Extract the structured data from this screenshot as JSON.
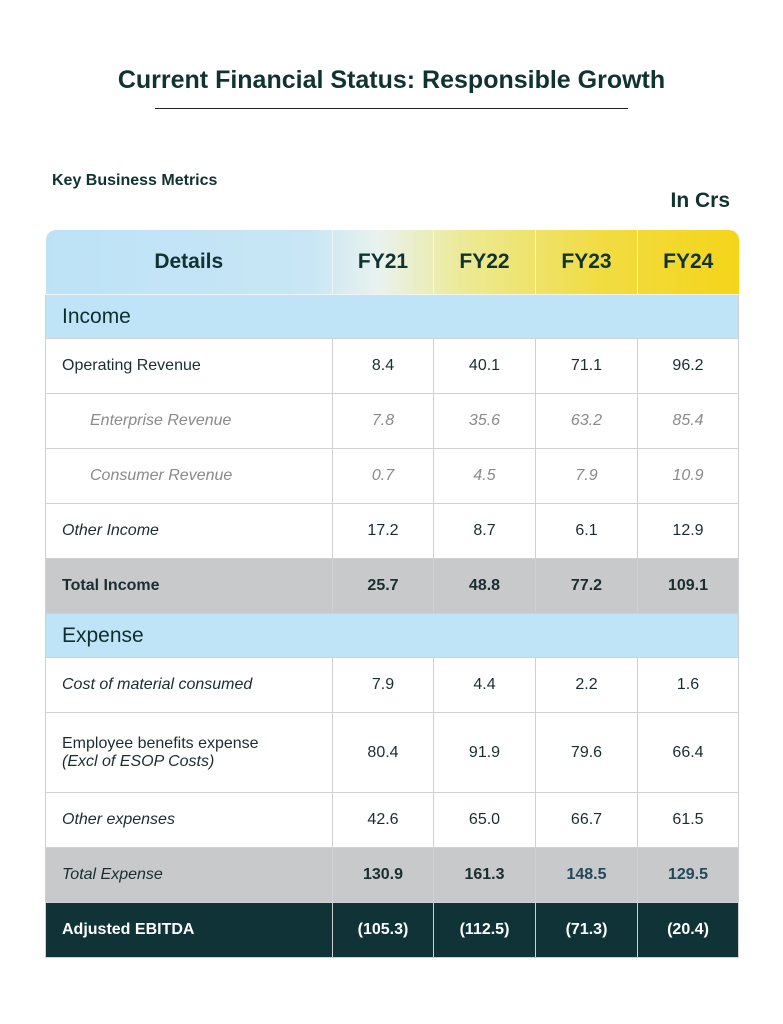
{
  "header": {
    "title": "Current Financial Status: Responsible Growth",
    "subtitle": "Key Business Metrics",
    "unit": "In Crs"
  },
  "table": {
    "columns": [
      "Details",
      "FY21",
      "FY22",
      "FY23",
      "FY24"
    ],
    "sections": [
      {
        "title": "Income",
        "rows": [
          {
            "label": "Operating Revenue",
            "values": [
              "8.4",
              "40.1",
              "71.1",
              "96.2"
            ]
          },
          {
            "label": "Enterprise Revenue",
            "values": [
              "7.8",
              "35.6",
              "63.2",
              "85.4"
            ]
          },
          {
            "label": "Consumer Revenue",
            "values": [
              "0.7",
              "4.5",
              "7.9",
              "10.9"
            ]
          },
          {
            "label": "Other Income",
            "values": [
              "17.2",
              "8.7",
              "6.1",
              "12.9"
            ]
          },
          {
            "label": "Total Income",
            "values": [
              "25.7",
              "48.8",
              "77.2",
              "109.1"
            ]
          }
        ]
      },
      {
        "title": "Expense",
        "rows": [
          {
            "label": "Cost of material consumed",
            "values": [
              "7.9",
              "4.4",
              "2.2",
              "1.6"
            ]
          },
          {
            "label": "Employee benefits expense",
            "note": "(Excl of ESOP Costs)",
            "values": [
              "80.4",
              "91.9",
              "79.6",
              "66.4"
            ]
          },
          {
            "label": "Other expenses",
            "values": [
              "42.6",
              "65.0",
              "66.7",
              "61.5"
            ]
          },
          {
            "label": "Total Expense",
            "values": [
              "130.9",
              "161.3",
              "148.5",
              "129.5"
            ]
          }
        ]
      }
    ],
    "summary": {
      "label": "Adjusted EBITDA",
      "values": [
        "(105.3)",
        "(112.5)",
        "(71.3)",
        "(20.4)"
      ]
    }
  }
}
